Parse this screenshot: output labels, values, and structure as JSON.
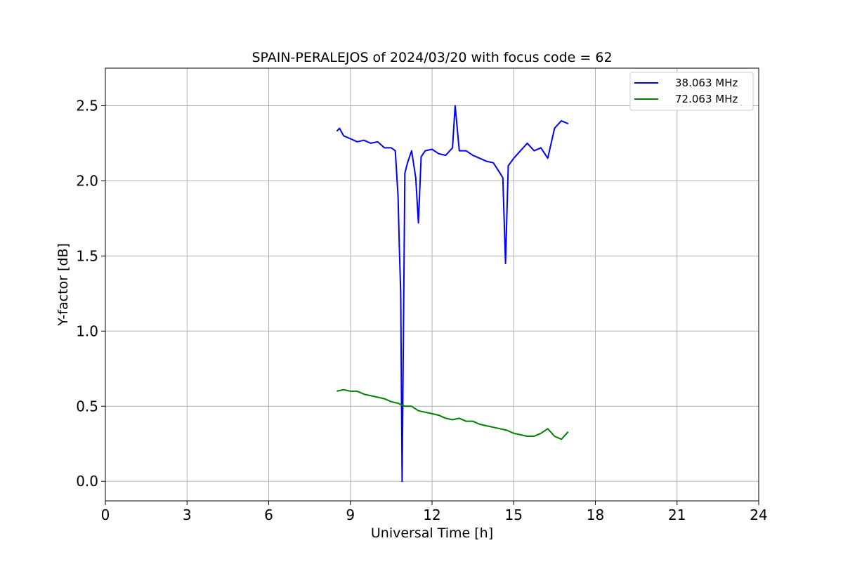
{
  "chart_data": {
    "type": "line",
    "title": "SPAIN-PERALEJOS of 2024/03/20 with focus code = 62",
    "xlabel": "Universal Time [h]",
    "ylabel": "Y-factor [dB]",
    "xlim": [
      0,
      24
    ],
    "ylim": [
      -0.13,
      2.75
    ],
    "xticks": [
      0,
      3,
      6,
      9,
      12,
      15,
      18,
      21,
      24
    ],
    "xtick_labels": [
      "0",
      "3",
      "6",
      "9",
      "12",
      "15",
      "18",
      "21",
      "24"
    ],
    "yticks": [
      0.0,
      0.5,
      1.0,
      1.5,
      2.0,
      2.5
    ],
    "ytick_labels": [
      "0.0",
      "0.5",
      "1.0",
      "1.5",
      "2.0",
      "2.5"
    ],
    "grid": true,
    "legend_position": "top-right",
    "series": [
      {
        "name": "38.063 MHz",
        "color": "#0000ff",
        "x": [
          8.5,
          8.6,
          8.75,
          9.0,
          9.25,
          9.5,
          9.75,
          10.0,
          10.25,
          10.5,
          10.65,
          10.75,
          10.8,
          10.85,
          10.9,
          11.0,
          11.1,
          11.25,
          11.4,
          11.5,
          11.6,
          11.75,
          12.0,
          12.25,
          12.5,
          12.75,
          12.85,
          13.0,
          13.25,
          13.5,
          13.75,
          14.0,
          14.25,
          14.5,
          14.6,
          14.7,
          14.8,
          15.0,
          15.25,
          15.5,
          15.75,
          16.0,
          16.25,
          16.5,
          16.75,
          17.0
        ],
        "y": [
          2.33,
          2.35,
          2.3,
          2.28,
          2.26,
          2.27,
          2.25,
          2.26,
          2.22,
          2.22,
          2.2,
          1.9,
          1.55,
          1.25,
          0.0,
          2.05,
          2.12,
          2.2,
          2.02,
          1.72,
          2.16,
          2.2,
          2.21,
          2.18,
          2.17,
          2.22,
          2.5,
          2.2,
          2.2,
          2.17,
          2.15,
          2.13,
          2.12,
          2.05,
          2.02,
          1.45,
          2.1,
          2.15,
          2.2,
          2.25,
          2.2,
          2.22,
          2.15,
          2.35,
          2.4,
          2.38
        ]
      },
      {
        "name": "72.063 MHz",
        "color": "#008000",
        "x": [
          8.5,
          8.75,
          9.0,
          9.25,
          9.5,
          9.75,
          10.0,
          10.25,
          10.5,
          10.75,
          11.0,
          11.25,
          11.5,
          11.75,
          12.0,
          12.25,
          12.5,
          12.75,
          13.0,
          13.25,
          13.5,
          13.75,
          14.0,
          14.25,
          14.5,
          14.75,
          15.0,
          15.25,
          15.5,
          15.75,
          16.0,
          16.25,
          16.5,
          16.75,
          17.0
        ],
        "y": [
          0.6,
          0.61,
          0.6,
          0.6,
          0.58,
          0.57,
          0.56,
          0.55,
          0.53,
          0.52,
          0.5,
          0.5,
          0.47,
          0.46,
          0.45,
          0.44,
          0.42,
          0.41,
          0.42,
          0.4,
          0.4,
          0.38,
          0.37,
          0.36,
          0.35,
          0.34,
          0.32,
          0.31,
          0.3,
          0.3,
          0.32,
          0.35,
          0.3,
          0.28,
          0.33
        ]
      }
    ]
  }
}
